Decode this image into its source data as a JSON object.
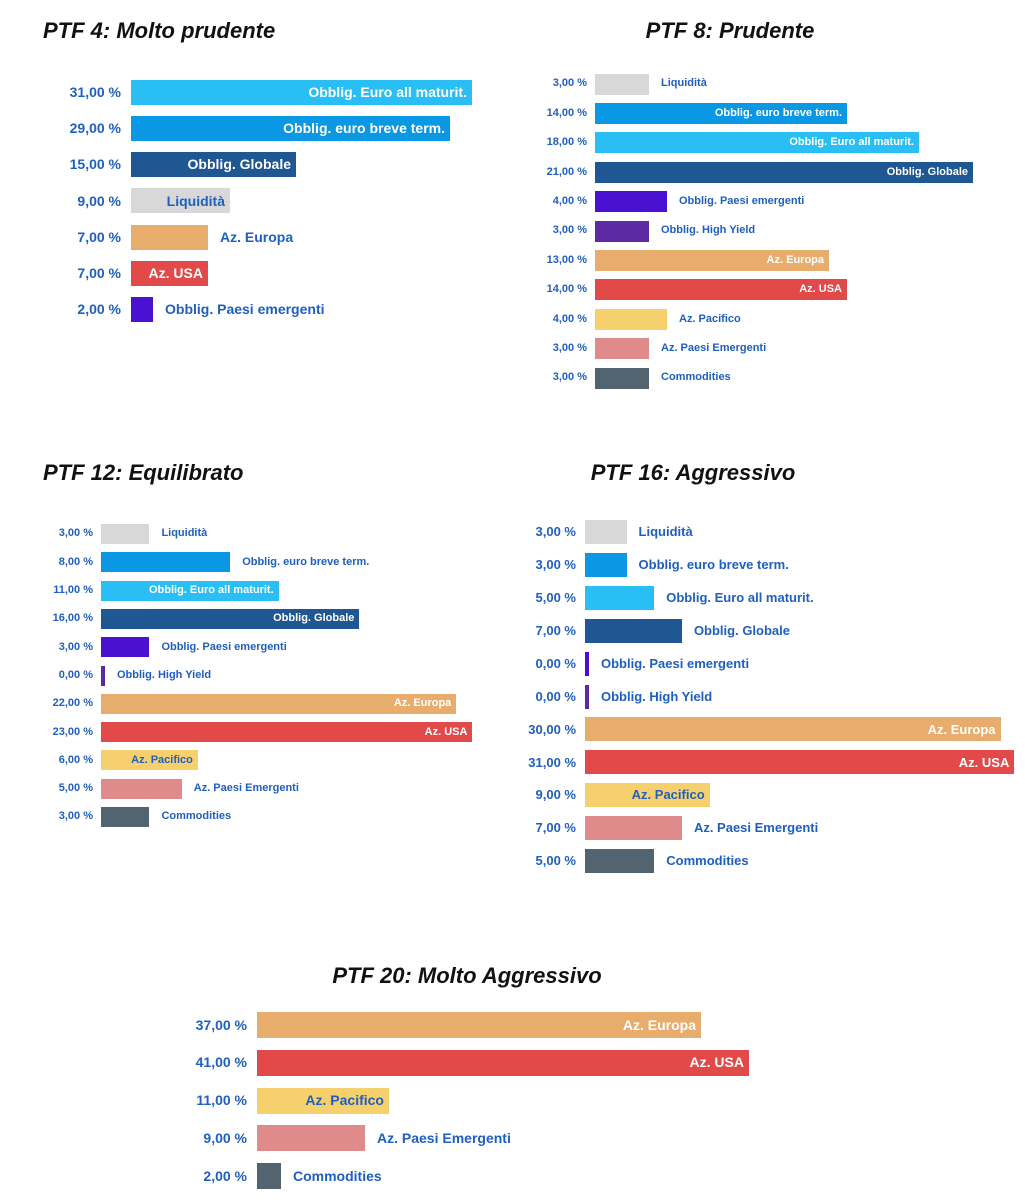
{
  "chart_data": [
    {
      "type": "bar",
      "title": "PTF 4: Molto prudente",
      "orientation": "horizontal",
      "categories": [
        "Obblig. Euro all maturit.",
        "Obblig. euro breve term.",
        "Obblig. Globale",
        "Liquidità",
        "Az. Europa",
        "Az. USA",
        "Obblig. Paesi emergenti"
      ],
      "value_labels": [
        "31,00 %",
        "29,00 %",
        "15,00 %",
        "9,00 %",
        "7,00 %",
        "7,00 %",
        "2,00 %"
      ],
      "values": [
        31,
        29,
        15,
        9,
        7,
        7,
        2
      ],
      "colors": [
        "#29bff5",
        "#0a97e3",
        "#1e5792",
        "#d8d8d8",
        "#e8ad6c",
        "#e24949",
        "#4a11d0"
      ],
      "unit": "%"
    },
    {
      "type": "bar",
      "title": "PTF 8: Prudente",
      "orientation": "horizontal",
      "categories": [
        "Liquidità",
        "Obblig. euro breve term.",
        "Obblig. Euro all maturit.",
        "Obblig. Globale",
        "Obblig. Paesi emergenti",
        "Obblig. High Yield",
        "Az. Europa",
        "Az. USA",
        "Az. Pacifico",
        "Az. Paesi Emergenti",
        "Commodities"
      ],
      "value_labels": [
        "3,00 %",
        "14,00 %",
        "18,00 %",
        "21,00 %",
        "4,00 %",
        "3,00 %",
        "13,00 %",
        "14,00 %",
        "4,00 %",
        "3,00 %",
        "3,00 %"
      ],
      "values": [
        3,
        14,
        18,
        21,
        4,
        3,
        13,
        14,
        4,
        3,
        3
      ],
      "colors": [
        "#d8d8d8",
        "#0a97e3",
        "#29bff5",
        "#1e5792",
        "#4a11d0",
        "#5c2aa3",
        "#e8ad6c",
        "#e24949",
        "#f7d06e",
        "#e08b8b",
        "#536471"
      ],
      "unit": "%"
    },
    {
      "type": "bar",
      "title": "PTF 12: Equilibrato",
      "orientation": "horizontal",
      "categories": [
        "Liquidità",
        "Obblig. euro breve term.",
        "Obblig. Euro all maturit.",
        "Obblig. Globale",
        "Obblig. Paesi emergenti",
        "Obblig. High Yield",
        "Az. Europa",
        "Az. USA",
        "Az. Pacifico",
        "Az. Paesi Emergenti",
        "Commodities"
      ],
      "value_labels": [
        "3,00 %",
        "8,00 %",
        "11,00 %",
        "16,00 %",
        "3,00 %",
        "0,00 %",
        "22,00 %",
        "23,00 %",
        "6,00 %",
        "5,00 %",
        "3,00 %"
      ],
      "values": [
        3,
        8,
        11,
        16,
        3,
        0,
        22,
        23,
        6,
        5,
        3
      ],
      "colors": [
        "#d8d8d8",
        "#0a97e3",
        "#29bff5",
        "#1e5792",
        "#4a11d0",
        "#5c2aa3",
        "#e8ad6c",
        "#e24949",
        "#f7d06e",
        "#e08b8b",
        "#536471"
      ],
      "unit": "%"
    },
    {
      "type": "bar",
      "title": "PTF 16: Aggressivo",
      "orientation": "horizontal",
      "categories": [
        "Liquidità",
        "Obblig. euro breve term.",
        "Obblig. Euro all maturit.",
        "Obblig. Globale",
        "Obblig. Paesi emergenti",
        "Obblig. High Yield",
        "Az. Europa",
        "Az. USA",
        "Az. Pacifico",
        "Az. Paesi Emergenti",
        "Commodities"
      ],
      "value_labels": [
        "3,00 %",
        "3,00 %",
        "5,00 %",
        "7,00 %",
        "0,00 %",
        "0,00 %",
        "30,00 %",
        "31,00 %",
        "9,00 %",
        "7,00 %",
        "5,00 %"
      ],
      "values": [
        3,
        3,
        5,
        7,
        0,
        0,
        30,
        31,
        9,
        7,
        5
      ],
      "colors": [
        "#d8d8d8",
        "#0a97e3",
        "#29bff5",
        "#1e5792",
        "#4a11d0",
        "#5c2aa3",
        "#e8ad6c",
        "#e24949",
        "#f7d06e",
        "#e08b8b",
        "#536471"
      ],
      "unit": "%"
    },
    {
      "type": "bar",
      "title": "PTF 20: Molto Aggressivo",
      "orientation": "horizontal",
      "categories": [
        "Az. Europa",
        "Az. USA",
        "Az. Pacifico",
        "Az. Paesi Emergenti",
        "Commodities"
      ],
      "value_labels": [
        "37,00 %",
        "41,00 %",
        "11,00 %",
        "9,00 %",
        "2,00 %"
      ],
      "values": [
        37,
        41,
        11,
        9,
        2
      ],
      "colors": [
        "#e8ad6c",
        "#e24949",
        "#f7d06e",
        "#e08b8b",
        "#536471"
      ],
      "unit": "%"
    }
  ]
}
